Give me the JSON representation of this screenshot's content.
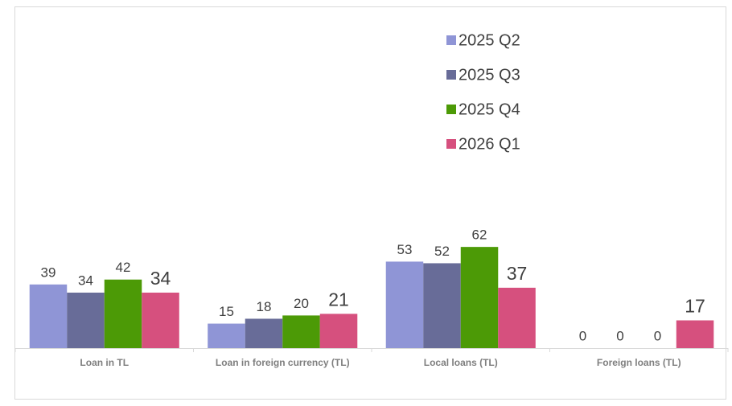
{
  "chart_data": {
    "type": "bar",
    "categories": [
      "Loan in TL",
      "Loan in foreign currency (TL)",
      "Local loans (TL)",
      "Foreign loans (TL)"
    ],
    "series": [
      {
        "name": "2025 Q2",
        "color": "#8f95d6",
        "values": [
          39,
          15,
          53,
          0
        ]
      },
      {
        "name": "2025 Q3",
        "color": "#686c98",
        "values": [
          34,
          18,
          52,
          0
        ]
      },
      {
        "name": "2025 Q4",
        "color": "#4c9a06",
        "values": [
          42,
          20,
          62,
          0
        ]
      },
      {
        "name": "2026 Q1",
        "color": "#d6507e",
        "values": [
          34,
          21,
          37,
          17
        ]
      }
    ],
    "ylim": [
      0,
      200
    ],
    "legend": "top-right"
  }
}
